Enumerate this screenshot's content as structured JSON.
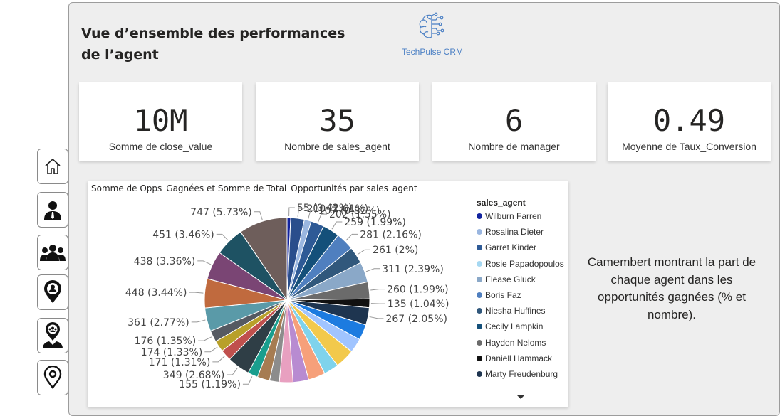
{
  "nav": {
    "items": [
      {
        "icon": "home-icon"
      },
      {
        "icon": "person-icon"
      },
      {
        "icon": "team-icon"
      },
      {
        "icon": "location-person-icon"
      },
      {
        "icon": "location-group-icon"
      },
      {
        "icon": "location-pin-icon"
      }
    ]
  },
  "header": {
    "title": "Vue d’ensemble des performances de l’agent",
    "logo_text": "TechPulse CRM"
  },
  "kpis": [
    {
      "value": "10M",
      "label": "Somme de close_value"
    },
    {
      "value": "35",
      "label": "Nombre de sales_agent"
    },
    {
      "value": "6",
      "label": "Nombre de manager"
    },
    {
      "value": "0.49",
      "label": "Moyenne de Taux_Conversion"
    }
  ],
  "note": "Camembert montrant la part de chaque agent dans les opportunités gagnées (% et nombre).",
  "chart_data": {
    "type": "pie",
    "title": "Somme de Opps_Gagnées et Somme de Total_Opportunités par sales_agent",
    "legend_title": "sales_agent",
    "legend_position": "right",
    "legend": [
      {
        "name": "Wilburn Farren",
        "color": "#12239e"
      },
      {
        "name": "Rosalina Dieter",
        "color": "#9ab6e0"
      },
      {
        "name": "Garret Kinder",
        "color": "#2e5a96"
      },
      {
        "name": "Rosie Papadopoulos",
        "color": "#a6d8f2"
      },
      {
        "name": "Elease Gluck",
        "color": "#8aa8c8"
      },
      {
        "name": "Boris Faz",
        "color": "#4f7fbf"
      },
      {
        "name": "Niesha Huffines",
        "color": "#31587c"
      },
      {
        "name": "Cecily Lampkin",
        "color": "#14507a"
      },
      {
        "name": "Hayden Neloms",
        "color": "#6b6b6b"
      },
      {
        "name": "Daniell Hammack",
        "color": "#111111"
      },
      {
        "name": "Marty Freudenburg",
        "color": "#1e3550"
      }
    ],
    "slices": [
      {
        "value": 55,
        "label": "55 (0.42%)",
        "color": "#12239e"
      },
      {
        "value": 210,
        "label": "210 (1.61%)",
        "color": "#2a4e8c"
      },
      {
        "value": 107,
        "label": "107 (0.82%)",
        "color": "#9ab6e0"
      },
      {
        "value": 202,
        "label": "202 (1.55%)",
        "color": "#2e5a96"
      },
      {
        "value": 259,
        "label": "259 (1.99%)",
        "color": "#14507a"
      },
      {
        "value": 281,
        "label": "281 (2.16%)",
        "color": "#4f7fbf"
      },
      {
        "value": 261,
        "label": "261 (2%)",
        "color": "#31587c"
      },
      {
        "value": 311,
        "label": "311 (2.39%)",
        "color": "#8aa8c8"
      },
      {
        "value": 260,
        "label": "260 (1.99%)",
        "color": "#6b6b6b"
      },
      {
        "value": 135,
        "label": "135 (1.04%)",
        "color": "#111111"
      },
      {
        "value": 267,
        "label": "267 (2.05%)",
        "color": "#1e3550"
      },
      {
        "value": 240,
        "label": "",
        "color": "#1c7be0"
      },
      {
        "value": 220,
        "label": "",
        "color": "#a0c4ff"
      },
      {
        "value": 300,
        "label": "",
        "color": "#f2c94c"
      },
      {
        "value": 230,
        "label": "",
        "color": "#7fd3ec"
      },
      {
        "value": 260,
        "label": "",
        "color": "#f6a07a"
      },
      {
        "value": 240,
        "label": "",
        "color": "#b88bd1"
      },
      {
        "value": 210,
        "label": "",
        "color": "#e8a0c0"
      },
      {
        "value": 150,
        "label": "",
        "color": "#8c8c8c"
      },
      {
        "value": 190,
        "label": "",
        "color": "#a67c52"
      },
      {
        "value": 155,
        "label": "155 (1.19%)",
        "color": "#1a9e8e"
      },
      {
        "value": 349,
        "label": "349 (2.68%)",
        "color": "#2f3e46"
      },
      {
        "value": 171,
        "label": "171 (1.31%)",
        "color": "#c0504d"
      },
      {
        "value": 174,
        "label": "174 (1.33%)",
        "color": "#b8a02a"
      },
      {
        "value": 176,
        "label": "176 (1.35%)",
        "color": "#555a62"
      },
      {
        "value": 361,
        "label": "361 (2.77%)",
        "color": "#5a9aa8"
      },
      {
        "value": 448,
        "label": "448 (3.44%)",
        "color": "#c06a3e"
      },
      {
        "value": 438,
        "label": "438 (3.36%)",
        "color": "#7a4574"
      },
      {
        "value": 451,
        "label": "451 (3.46%)",
        "color": "#1e5263"
      },
      {
        "value": 747,
        "label": "747 (5.73%)",
        "color": "#6e5e5b"
      }
    ]
  }
}
